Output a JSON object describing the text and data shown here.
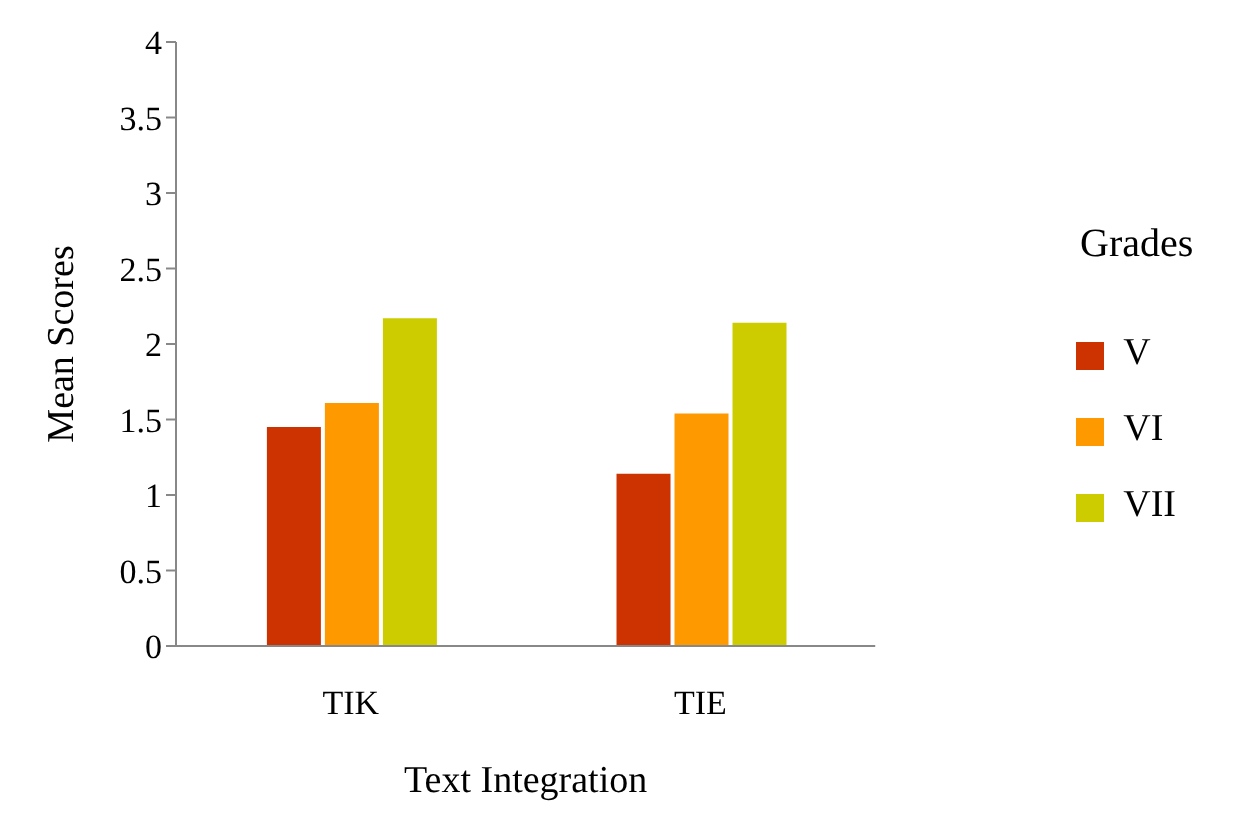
{
  "chart_data": {
    "type": "bar",
    "xlabel": "Text Integration",
    "ylabel": "Mean Scores",
    "legend_title": "Grades",
    "categories": [
      "TIK",
      "TIE"
    ],
    "series": [
      {
        "name": "V",
        "color": "#cc3300",
        "values": [
          1.45,
          1.14
        ]
      },
      {
        "name": "VI",
        "color": "#ff9900",
        "values": [
          1.61,
          1.54
        ]
      },
      {
        "name": "VII",
        "color": "#cccc00",
        "values": [
          2.17,
          2.14
        ]
      }
    ],
    "ylim": [
      0,
      4
    ],
    "yticks": [
      0,
      0.5,
      1,
      1.5,
      2,
      2.5,
      3,
      3.5,
      4
    ],
    "grid": false,
    "legend": "right"
  }
}
